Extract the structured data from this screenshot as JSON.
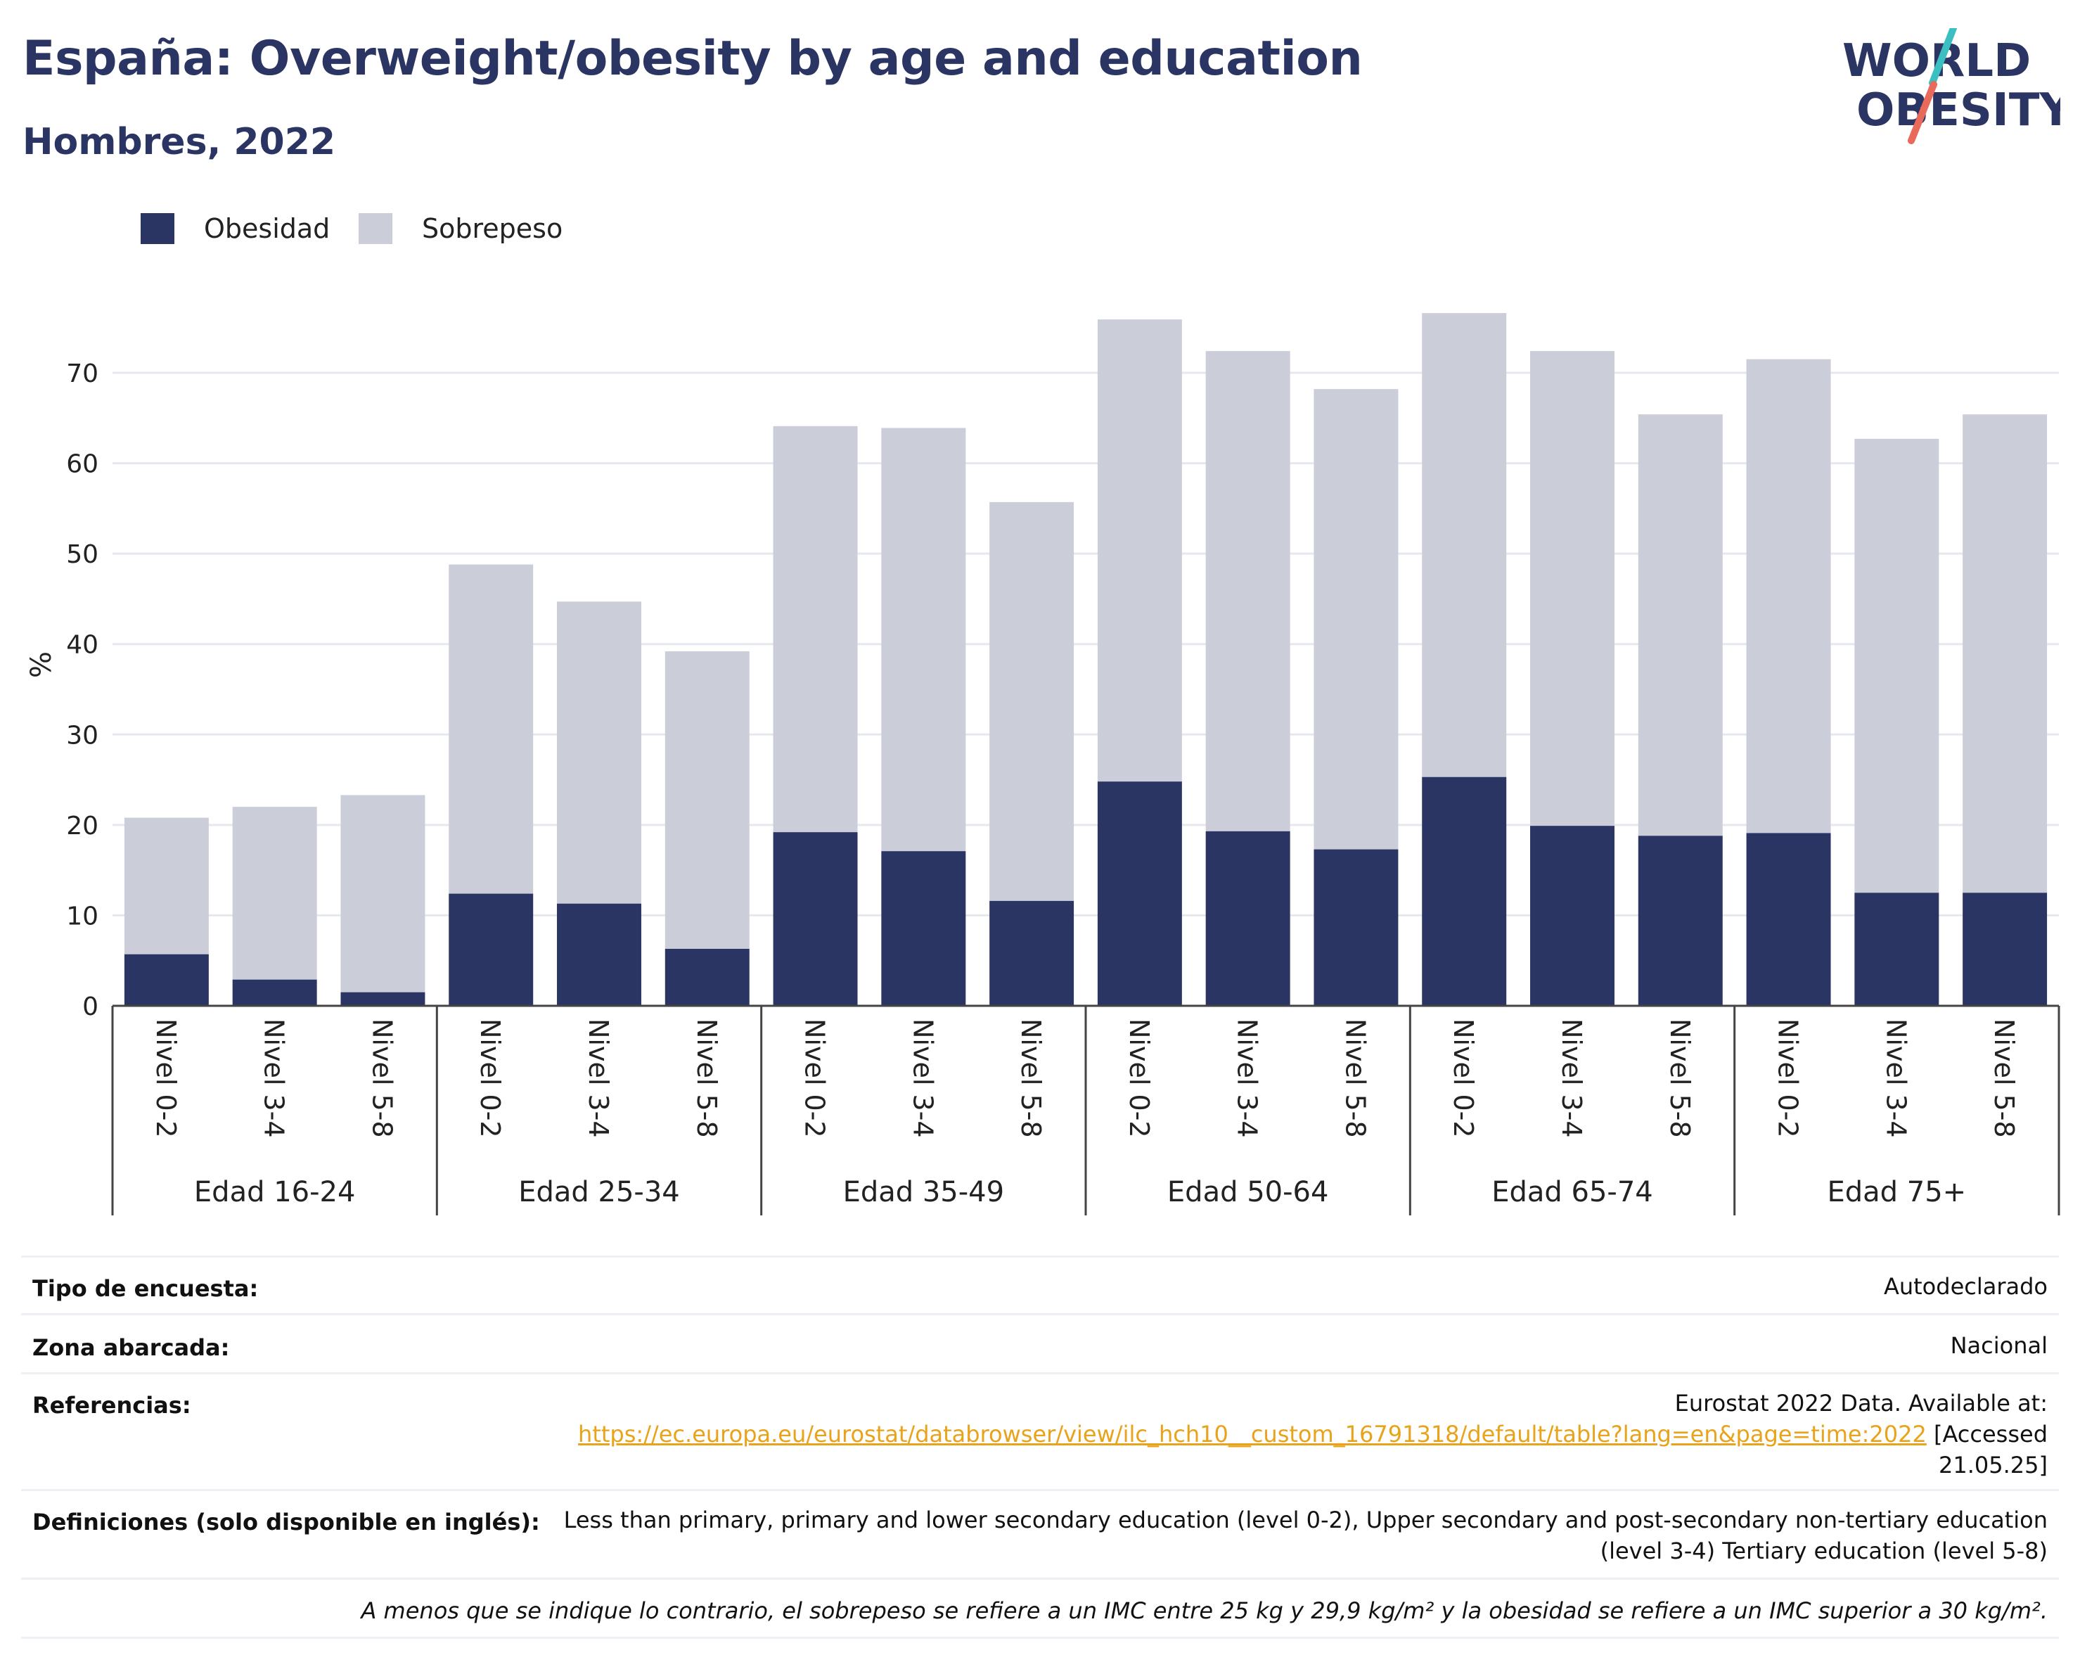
{
  "header": {
    "title": "España: Overweight/obesity by age and education",
    "subtitle": "Hombres, 2022",
    "logo_line1": "WORLD",
    "logo_line2": "OBESITY"
  },
  "legend": {
    "obesity_label": "Obesidad",
    "overweight_label": "Sobrepeso"
  },
  "colors": {
    "obesity": "#2b3563",
    "overweight": "#cbcdd9",
    "accent_link": "#e9a31a",
    "logo_teal": "#3bbfc1",
    "logo_coral": "#e9695a"
  },
  "chart_data": {
    "type": "bar",
    "stacked": true,
    "ylabel": "%",
    "ylim": [
      0,
      77
    ],
    "yticks": [
      0,
      10,
      20,
      30,
      40,
      50,
      60,
      70
    ],
    "grid": true,
    "legend_position": "top-left",
    "groups": [
      "Edad 16-24",
      "Edad 25-34",
      "Edad 35-49",
      "Edad 50-64",
      "Edad 65-74",
      "Edad 75+"
    ],
    "levels": [
      "Nivel 0-2",
      "Nivel 3-4",
      "Nivel 5-8"
    ],
    "series": [
      {
        "name": "Obesidad",
        "values": [
          5.7,
          2.9,
          1.5,
          12.4,
          11.3,
          6.3,
          19.2,
          17.1,
          11.6,
          24.8,
          19.3,
          17.3,
          25.3,
          19.9,
          18.8,
          19.1,
          12.5,
          12.5
        ]
      },
      {
        "name": "Sobrepeso",
        "values": [
          15.1,
          19.1,
          21.8,
          36.4,
          33.4,
          32.9,
          44.9,
          46.8,
          44.1,
          51.1,
          53.1,
          50.9,
          51.3,
          52.5,
          46.6,
          52.4,
          50.2,
          52.9
        ]
      }
    ]
  },
  "info": {
    "survey_label": "Tipo de encuesta:",
    "survey_value": "Autodeclarado",
    "area_label": "Zona abarcada:",
    "area_value": "Nacional",
    "ref_label": "Referencias:",
    "ref_line1": "Eurostat 2022 Data. Available at:",
    "ref_link": "https://ec.europa.eu/eurostat/databrowser/view/ilc_hch10__custom_16791318/default/table?lang=en&page=time:2022",
    "ref_after_link": " [Accessed",
    "ref_line3": "21.05.25]",
    "def_label": "Definiciones (solo disponible en inglés):",
    "def_line1": "Less than primary, primary and lower secondary education (level 0-2), Upper secondary and post-secondary non-tertiary education",
    "def_line2": "(level 3-4) Tertiary education (level 5-8)",
    "footnote": "A menos que se indique lo contrario, el sobrepeso se refiere a un IMC entre 25 kg y 29,9 kg/m² y la obesidad se refiere a un IMC superior a 30 kg/m²."
  }
}
